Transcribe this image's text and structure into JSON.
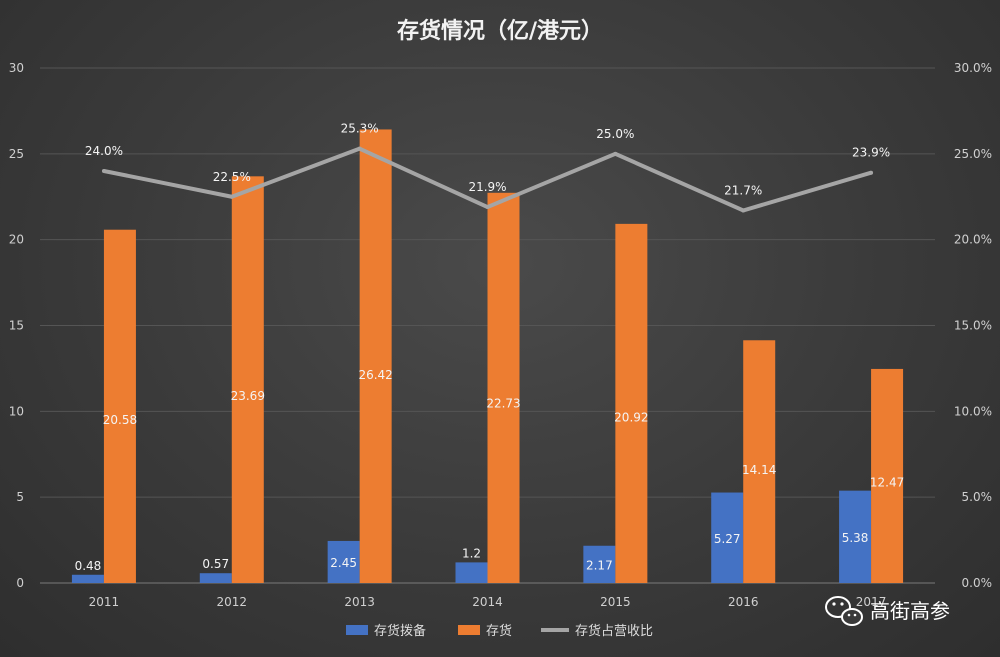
{
  "chart_data": {
    "type": "bar",
    "title": "存货情况（亿/港元）",
    "categories": [
      "2011",
      "2012",
      "2013",
      "2014",
      "2015",
      "2016",
      "2017"
    ],
    "series": [
      {
        "name": "存货拨备",
        "type": "bar",
        "axis": "left",
        "color": "#4472C4",
        "values": [
          0.48,
          0.57,
          2.45,
          1.2,
          2.17,
          5.27,
          5.38
        ],
        "labels": [
          "0.48",
          "0.57",
          "2.45",
          "1.2",
          "2.17",
          "5.27",
          "5.38"
        ]
      },
      {
        "name": "存货",
        "type": "bar",
        "axis": "left",
        "color": "#ED7D31",
        "values": [
          20.58,
          23.69,
          26.42,
          22.73,
          20.92,
          14.14,
          12.47
        ],
        "labels": [
          "20.58",
          "23.69",
          "26.42",
          "22.73",
          "20.92",
          "14.14",
          "12.47"
        ]
      },
      {
        "name": "存货占营收比",
        "type": "line",
        "axis": "right",
        "color": "#A5A5A5",
        "values": [
          24.0,
          22.5,
          25.3,
          21.9,
          25.0,
          21.7,
          23.9
        ],
        "labels": [
          "24.0%",
          "22.5%",
          "25.3%",
          "21.9%",
          "25.0%",
          "21.7%",
          "23.9%"
        ]
      }
    ],
    "ylim": [
      0,
      30
    ],
    "y_ticks": [
      "0",
      "5",
      "10",
      "15",
      "20",
      "25",
      "30"
    ],
    "y2lim": [
      0,
      30
    ],
    "y2_ticks": [
      "0.0%",
      "5.0%",
      "10.0%",
      "15.0%",
      "20.0%",
      "25.0%",
      "30.0%"
    ],
    "grid": true,
    "legend_position": "bottom"
  },
  "watermark": {
    "text": "高街高参",
    "icon": "wechat-icon"
  }
}
